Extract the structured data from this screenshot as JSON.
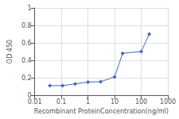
{
  "chart_data": {
    "type": "line",
    "x": [
      0.037,
      0.111,
      0.333,
      1.0,
      3.0,
      10.0,
      20.0,
      100.0,
      200.0
    ],
    "values": [
      0.11,
      0.11,
      0.13,
      0.15,
      0.155,
      0.21,
      0.48,
      0.5,
      0.7
    ],
    "color": "#4466bb",
    "marker": "diamond",
    "xlabel": "Recombinant ProteinConcentration(ng/ml)",
    "ylabel": "OD 450",
    "log": "x",
    "xlim": [
      0.01,
      1000
    ],
    "xticks": [
      0.01,
      0.1,
      1,
      10,
      100,
      1000
    ],
    "ylim": [
      0,
      1
    ],
    "yticks": [
      0,
      0.2,
      0.4,
      0.6,
      0.8,
      1
    ],
    "grid": true
  }
}
